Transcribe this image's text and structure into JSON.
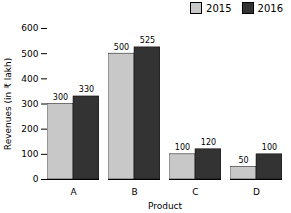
{
  "chart_data": {
    "type": "bar",
    "categories": [
      "A",
      "B",
      "C",
      "D"
    ],
    "series": [
      {
        "name": "2015",
        "color": "#c8c8c8",
        "values": [
          300,
          500,
          100,
          50
        ]
      },
      {
        "name": "2016",
        "color": "#333333",
        "values": [
          330,
          525,
          120,
          100
        ]
      }
    ],
    "xlabel": "Product",
    "ylabel": "Revenues (in ₹ lakh)",
    "ylim": [
      0,
      600
    ],
    "yticks": [
      0,
      100,
      200,
      300,
      400,
      500,
      600
    ],
    "grid": false,
    "legend": "upper right",
    "data_labels": true
  }
}
